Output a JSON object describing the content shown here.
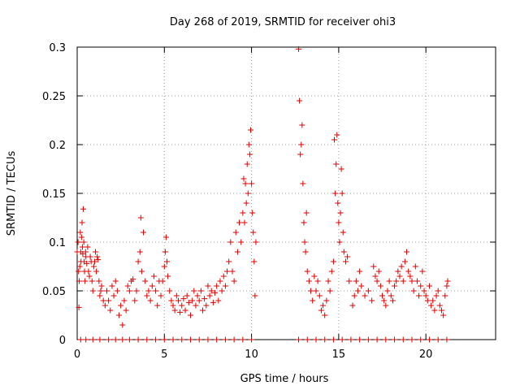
{
  "chart_data": {
    "type": "scatter",
    "title": "Day 268 of 2019, SRMTID for receiver ohi3",
    "xlabel": "GPS time / hours",
    "ylabel": "SRMTID / TECUs",
    "xlim": [
      0,
      24
    ],
    "ylim": [
      0,
      0.3
    ],
    "x_ticks": [
      0,
      5,
      10,
      15,
      20
    ],
    "x_tick_labels": [
      "0",
      "5",
      "10",
      "15",
      "20"
    ],
    "y_ticks": [
      0,
      0.05,
      0.1,
      0.15,
      0.2,
      0.25,
      0.3
    ],
    "y_tick_labels": [
      "0",
      "0.05",
      "0.1",
      "0.15",
      "0.2",
      "0.25",
      "0.3"
    ],
    "grid": true,
    "marker": "+",
    "colors": {
      "points": "#e00000",
      "grid": "#a0a0a0",
      "axis": "#000000"
    },
    "series": [
      {
        "name": "SRMTID",
        "points": [
          [
            0.0,
            0.09
          ],
          [
            0.05,
            0.1
          ],
          [
            0.08,
            0.07
          ],
          [
            0.1,
            0.033
          ],
          [
            0.12,
            0.06
          ],
          [
            0.15,
            0.075
          ],
          [
            0.18,
            0.11
          ],
          [
            0.2,
            0.09
          ],
          [
            0.22,
            0.08
          ],
          [
            0.25,
            0.105
          ],
          [
            0.28,
            0.12
          ],
          [
            0.3,
            0.095
          ],
          [
            0.32,
            0.088
          ],
          [
            0.35,
            0.134
          ],
          [
            0.38,
            0.1
          ],
          [
            0.4,
            0.08
          ],
          [
            0.42,
            0.07
          ],
          [
            0.45,
            0.06
          ],
          [
            0.48,
            0.09
          ],
          [
            0.5,
            0.085
          ],
          [
            0.55,
            0.078
          ],
          [
            0.6,
            0.095
          ],
          [
            0.65,
            0.07
          ],
          [
            0.7,
            0.065
          ],
          [
            0.75,
            0.085
          ],
          [
            0.8,
            0.08
          ],
          [
            0.85,
            0.06
          ],
          [
            0.9,
            0.05
          ],
          [
            0.95,
            0.075
          ],
          [
            1.0,
            0.08
          ],
          [
            1.05,
            0.09
          ],
          [
            1.1,
            0.07
          ],
          [
            1.15,
            0.085
          ],
          [
            1.2,
            0.082
          ],
          [
            1.25,
            0.06
          ],
          [
            1.3,
            0.045
          ],
          [
            1.35,
            0.05
          ],
          [
            1.4,
            0.055
          ],
          [
            1.5,
            0.04
          ],
          [
            1.6,
            0.035
          ],
          [
            1.7,
            0.05
          ],
          [
            1.8,
            0.04
          ],
          [
            1.9,
            0.03
          ],
          [
            2.0,
            0.055
          ],
          [
            2.1,
            0.045
          ],
          [
            2.2,
            0.06
          ],
          [
            2.3,
            0.05
          ],
          [
            2.4,
            0.025
          ],
          [
            2.5,
            0.035
          ],
          [
            2.6,
            0.015
          ],
          [
            2.7,
            0.04
          ],
          [
            2.8,
            0.03
          ],
          [
            2.9,
            0.055
          ],
          [
            3.0,
            0.05
          ],
          [
            3.1,
            0.06
          ],
          [
            3.2,
            0.062
          ],
          [
            3.3,
            0.04
          ],
          [
            3.4,
            0.05
          ],
          [
            3.5,
            0.08
          ],
          [
            3.6,
            0.09
          ],
          [
            3.65,
            0.125
          ],
          [
            3.7,
            0.07
          ],
          [
            3.8,
            0.11
          ],
          [
            3.9,
            0.06
          ],
          [
            4.0,
            0.045
          ],
          [
            4.1,
            0.05
          ],
          [
            4.2,
            0.04
          ],
          [
            4.3,
            0.055
          ],
          [
            4.4,
            0.065
          ],
          [
            4.5,
            0.05
          ],
          [
            4.6,
            0.035
          ],
          [
            4.7,
            0.06
          ],
          [
            4.8,
            0.045
          ],
          [
            4.9,
            0.06
          ],
          [
            5.0,
            0.075
          ],
          [
            5.05,
            0.09
          ],
          [
            5.1,
            0.105
          ],
          [
            5.15,
            0.08
          ],
          [
            5.2,
            0.065
          ],
          [
            5.3,
            0.05
          ],
          [
            5.4,
            0.04
          ],
          [
            5.5,
            0.035
          ],
          [
            5.6,
            0.03
          ],
          [
            5.7,
            0.045
          ],
          [
            5.8,
            0.04
          ],
          [
            5.9,
            0.028
          ],
          [
            6.0,
            0.035
          ],
          [
            6.1,
            0.042
          ],
          [
            6.2,
            0.03
          ],
          [
            6.3,
            0.045
          ],
          [
            6.4,
            0.038
          ],
          [
            6.5,
            0.025
          ],
          [
            6.6,
            0.04
          ],
          [
            6.7,
            0.05
          ],
          [
            6.8,
            0.035
          ],
          [
            6.9,
            0.045
          ],
          [
            7.0,
            0.04
          ],
          [
            7.1,
            0.05
          ],
          [
            7.2,
            0.03
          ],
          [
            7.3,
            0.042
          ],
          [
            7.4,
            0.035
          ],
          [
            7.5,
            0.055
          ],
          [
            7.6,
            0.045
          ],
          [
            7.7,
            0.05
          ],
          [
            7.8,
            0.038
          ],
          [
            7.9,
            0.048
          ],
          [
            8.0,
            0.055
          ],
          [
            8.1,
            0.04
          ],
          [
            8.2,
            0.06
          ],
          [
            8.3,
            0.05
          ],
          [
            8.4,
            0.065
          ],
          [
            8.5,
            0.055
          ],
          [
            8.6,
            0.07
          ],
          [
            8.7,
            0.08
          ],
          [
            8.8,
            0.1
          ],
          [
            8.9,
            0.07
          ],
          [
            9.0,
            0.06
          ],
          [
            9.1,
            0.11
          ],
          [
            9.2,
            0.09
          ],
          [
            9.3,
            0.12
          ],
          [
            9.4,
            0.1
          ],
          [
            9.5,
            0.13
          ],
          [
            9.55,
            0.165
          ],
          [
            9.6,
            0.12
          ],
          [
            9.65,
            0.16
          ],
          [
            9.7,
            0.14
          ],
          [
            9.75,
            0.18
          ],
          [
            9.8,
            0.15
          ],
          [
            9.85,
            0.2
          ],
          [
            9.9,
            0.19
          ],
          [
            9.95,
            0.215
          ],
          [
            10.0,
            0.16
          ],
          [
            10.05,
            0.13
          ],
          [
            10.1,
            0.11
          ],
          [
            10.15,
            0.08
          ],
          [
            10.2,
            0.045
          ],
          [
            10.25,
            0.1
          ],
          [
            12.7,
            0.298
          ],
          [
            12.75,
            0.245
          ],
          [
            12.8,
            0.19
          ],
          [
            12.85,
            0.2
          ],
          [
            12.9,
            0.22
          ],
          [
            12.95,
            0.16
          ],
          [
            13.0,
            0.12
          ],
          [
            13.05,
            0.1
          ],
          [
            13.1,
            0.09
          ],
          [
            13.15,
            0.13
          ],
          [
            13.2,
            0.07
          ],
          [
            13.3,
            0.06
          ],
          [
            13.4,
            0.05
          ],
          [
            13.5,
            0.04
          ],
          [
            13.6,
            0.065
          ],
          [
            13.7,
            0.05
          ],
          [
            13.8,
            0.06
          ],
          [
            13.9,
            0.045
          ],
          [
            14.0,
            0.03
          ],
          [
            14.1,
            0.035
          ],
          [
            14.2,
            0.025
          ],
          [
            14.3,
            0.04
          ],
          [
            14.4,
            0.06
          ],
          [
            14.5,
            0.05
          ],
          [
            14.6,
            0.07
          ],
          [
            14.7,
            0.08
          ],
          [
            14.75,
            0.205
          ],
          [
            14.8,
            0.15
          ],
          [
            14.85,
            0.18
          ],
          [
            14.9,
            0.21
          ],
          [
            14.95,
            0.14
          ],
          [
            15.0,
            0.12
          ],
          [
            15.05,
            0.1
          ],
          [
            15.1,
            0.13
          ],
          [
            15.15,
            0.175
          ],
          [
            15.2,
            0.15
          ],
          [
            15.25,
            0.11
          ],
          [
            15.3,
            0.09
          ],
          [
            15.4,
            0.08
          ],
          [
            15.5,
            0.085
          ],
          [
            15.6,
            0.06
          ],
          [
            15.8,
            0.035
          ],
          [
            15.9,
            0.045
          ],
          [
            16.0,
            0.06
          ],
          [
            16.1,
            0.05
          ],
          [
            16.2,
            0.07
          ],
          [
            16.3,
            0.055
          ],
          [
            16.5,
            0.045
          ],
          [
            16.7,
            0.05
          ],
          [
            16.9,
            0.04
          ],
          [
            17.0,
            0.075
          ],
          [
            17.1,
            0.065
          ],
          [
            17.2,
            0.06
          ],
          [
            17.3,
            0.07
          ],
          [
            17.4,
            0.055
          ],
          [
            17.5,
            0.045
          ],
          [
            17.6,
            0.04
          ],
          [
            17.7,
            0.035
          ],
          [
            17.8,
            0.05
          ],
          [
            17.9,
            0.06
          ],
          [
            18.0,
            0.045
          ],
          [
            18.1,
            0.04
          ],
          [
            18.2,
            0.055
          ],
          [
            18.3,
            0.06
          ],
          [
            18.4,
            0.07
          ],
          [
            18.5,
            0.065
          ],
          [
            18.6,
            0.075
          ],
          [
            18.7,
            0.06
          ],
          [
            18.8,
            0.08
          ],
          [
            18.9,
            0.09
          ],
          [
            19.0,
            0.07
          ],
          [
            19.1,
            0.065
          ],
          [
            19.2,
            0.06
          ],
          [
            19.3,
            0.05
          ],
          [
            19.4,
            0.075
          ],
          [
            19.5,
            0.06
          ],
          [
            19.6,
            0.045
          ],
          [
            19.7,
            0.055
          ],
          [
            19.8,
            0.07
          ],
          [
            19.9,
            0.05
          ],
          [
            20.0,
            0.045
          ],
          [
            20.1,
            0.04
          ],
          [
            20.2,
            0.055
          ],
          [
            20.3,
            0.035
          ],
          [
            20.4,
            0.04
          ],
          [
            20.5,
            0.03
          ],
          [
            20.6,
            0.045
          ],
          [
            20.7,
            0.05
          ],
          [
            20.8,
            0.035
          ],
          [
            20.9,
            0.03
          ],
          [
            21.0,
            0.025
          ],
          [
            21.1,
            0.045
          ],
          [
            21.2,
            0.055
          ],
          [
            21.25,
            0.06
          ]
        ]
      }
    ],
    "zero_markers_x": [
      0.2,
      0.5,
      0.9,
      1.3,
      1.8,
      2.2,
      2.6,
      3.0,
      3.5,
      4.0,
      4.5,
      5.0,
      5.5,
      6.0,
      6.5,
      7.0,
      7.5,
      8.0,
      8.5,
      9.0,
      9.5,
      10.0,
      12.7,
      13.2,
      13.7,
      14.2,
      14.7,
      15.2,
      15.7,
      16.2,
      16.7,
      17.2,
      17.7,
      18.2,
      18.7,
      19.2,
      19.7,
      20.2,
      20.7,
      21.2
    ]
  }
}
